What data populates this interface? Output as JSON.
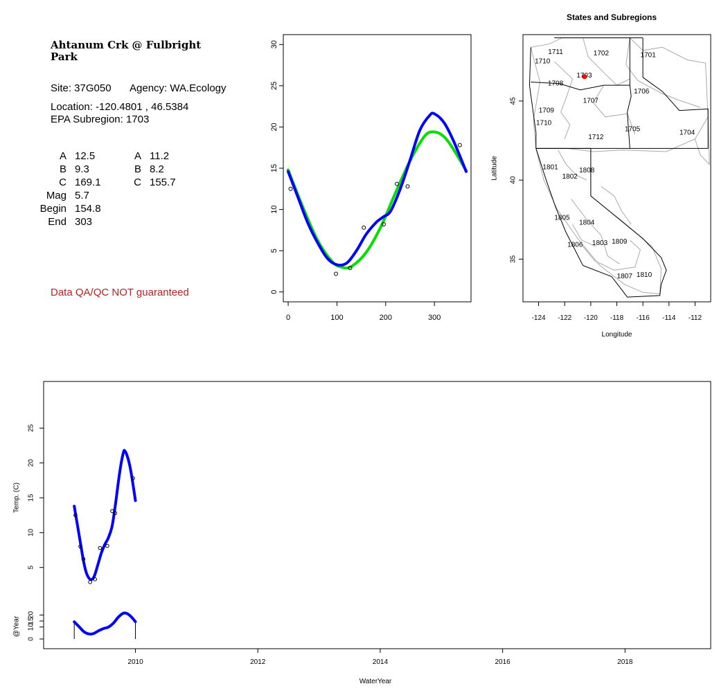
{
  "site_panel": {
    "station_name": "Ahtanum Crk @ Fulbright Park",
    "site_line": "Site: 37G050",
    "agency_line": "Agency: WA.Ecology",
    "location_line": "Location: -120.4801 , 46.5384",
    "subregion_line": "EPA Subregion: 1703",
    "params_left": [
      {
        "key": "A",
        "value": "12.5"
      },
      {
        "key": "B",
        "value": "9.3"
      },
      {
        "key": "C",
        "value": "169.1"
      },
      {
        "key": "Mag",
        "value": "5.7"
      },
      {
        "key": "Begin",
        "value": "154.8"
      },
      {
        "key": "End",
        "value": "303"
      }
    ],
    "params_right": [
      {
        "key": "A",
        "value": "11.2"
      },
      {
        "key": "B",
        "value": "8.2"
      },
      {
        "key": "C",
        "value": "155.7"
      }
    ],
    "warning": "Data QA/QC NOT guaranteed",
    "warning_color": "#b22222"
  },
  "chart_data": [
    {
      "type": "line",
      "xlim": [
        0,
        365
      ],
      "ylim": [
        0,
        30
      ],
      "xticks": [
        0,
        100,
        200,
        300
      ],
      "yticks": [
        0,
        5,
        10,
        15,
        20,
        25,
        30
      ],
      "points": [
        {
          "x": 5,
          "y": 12.5
        },
        {
          "x": 98,
          "y": 2.2
        },
        {
          "x": 127,
          "y": 2.9
        },
        {
          "x": 155,
          "y": 7.8
        },
        {
          "x": 196,
          "y": 8.2
        },
        {
          "x": 223,
          "y": 13.1
        },
        {
          "x": 245,
          "y": 12.8
        },
        {
          "x": 352,
          "y": 17.8
        }
      ],
      "series": [
        {
          "color": "#00e000",
          "values": [
            [
              0,
              14.8
            ],
            [
              30,
              10.3
            ],
            [
              60,
              6.3
            ],
            [
              90,
              3.7
            ],
            [
              110,
              3.0
            ],
            [
              130,
              3.1
            ],
            [
              160,
              4.8
            ],
            [
              190,
              7.9
            ],
            [
              220,
              12.0
            ],
            [
              250,
              15.9
            ],
            [
              280,
              18.9
            ],
            [
              300,
              19.4
            ],
            [
              320,
              18.8
            ],
            [
              340,
              17.2
            ],
            [
              365,
              14.7
            ]
          ]
        },
        {
          "color": "#0000ff",
          "values": [
            [
              0,
              14.6
            ],
            [
              20,
              11.5
            ],
            [
              40,
              8.4
            ],
            [
              60,
              6.0
            ],
            [
              80,
              4.1
            ],
            [
              100,
              3.3
            ],
            [
              120,
              3.5
            ],
            [
              140,
              5.0
            ],
            [
              160,
              7.0
            ],
            [
              180,
              8.4
            ],
            [
              195,
              9.1
            ],
            [
              210,
              9.8
            ],
            [
              230,
              12.5
            ],
            [
              250,
              16.0
            ],
            [
              270,
              19.6
            ],
            [
              290,
              21.4
            ],
            [
              300,
              21.6
            ],
            [
              320,
              20.5
            ],
            [
              340,
              18.2
            ],
            [
              365,
              14.6
            ]
          ]
        }
      ]
    },
    {
      "type": "line",
      "xlabel": "WaterYear",
      "ylabel": "Temp. (C)",
      "xlim": [
        2008.5,
        2019.4
      ],
      "ylim": [
        3,
        30
      ],
      "xticks": [
        "2010",
        "2012",
        "2014",
        "2016",
        "2018"
      ],
      "yticks": [
        5,
        10,
        15,
        20,
        25
      ],
      "points": [
        {
          "x": 2009.02,
          "y": 12.5
        },
        {
          "x": 2009.1,
          "y": 8.0
        },
        {
          "x": 2009.15,
          "y": 6.2
        },
        {
          "x": 2009.26,
          "y": 2.9
        },
        {
          "x": 2009.34,
          "y": 3.3
        },
        {
          "x": 2009.42,
          "y": 7.8
        },
        {
          "x": 2009.54,
          "y": 8.1
        },
        {
          "x": 2009.62,
          "y": 13.1
        },
        {
          "x": 2009.67,
          "y": 12.8
        },
        {
          "x": 2009.96,
          "y": 17.8
        }
      ],
      "series": [
        {
          "color": "#0000ff",
          "values": [
            [
              2009.0,
              13.8
            ],
            [
              2009.05,
              11.2
            ],
            [
              2009.1,
              8.6
            ],
            [
              2009.15,
              6.0
            ],
            [
              2009.2,
              4.2
            ],
            [
              2009.26,
              3.3
            ],
            [
              2009.32,
              3.6
            ],
            [
              2009.38,
              5.2
            ],
            [
              2009.44,
              7.0
            ],
            [
              2009.5,
              8.3
            ],
            [
              2009.56,
              9.3
            ],
            [
              2009.62,
              11.0
            ],
            [
              2009.68,
              14.5
            ],
            [
              2009.74,
              18.5
            ],
            [
              2009.8,
              21.4
            ],
            [
              2009.83,
              21.7
            ],
            [
              2009.88,
              20.6
            ],
            [
              2009.93,
              18.6
            ],
            [
              2010.0,
              14.6
            ]
          ]
        }
      ]
    },
    {
      "type": "area",
      "ylabel": "@Year",
      "ylim": [
        -2,
        30
      ],
      "yticks": [
        0,
        10,
        15,
        20
      ],
      "xlim": [
        2008.5,
        2019.4
      ],
      "bounds": [
        2009.0,
        2010.0
      ],
      "series": [
        {
          "color": "#0000ff",
          "values": [
            [
              2009.0,
              14.3
            ],
            [
              2009.08,
              10.2
            ],
            [
              2009.16,
              6.0
            ],
            [
              2009.24,
              4.2
            ],
            [
              2009.32,
              4.6
            ],
            [
              2009.4,
              6.9
            ],
            [
              2009.48,
              8.7
            ],
            [
              2009.56,
              10.0
            ],
            [
              2009.64,
              13.2
            ],
            [
              2009.72,
              18.2
            ],
            [
              2009.8,
              21.4
            ],
            [
              2009.86,
              21.3
            ],
            [
              2009.93,
              18.6
            ],
            [
              2010.0,
              14.4
            ]
          ]
        }
      ]
    }
  ],
  "map": {
    "title": "States and Subregions",
    "xlabel": "Longitude",
    "ylabel": "Latitude",
    "xlim": [
      -125.2,
      -110.8
    ],
    "ylim": [
      32.3,
      49.2
    ],
    "xticks": [
      -124,
      -122,
      -120,
      -118,
      -116,
      -114,
      -112
    ],
    "yticks": [
      35,
      40,
      45
    ],
    "site": {
      "lon": -120.48,
      "lat": 46.54,
      "color": "#ff0000"
    },
    "regions": [
      {
        "label": "1701",
        "lon": -115.6,
        "lat": 47.9
      },
      {
        "label": "1702",
        "lon": -119.2,
        "lat": 48.0
      },
      {
        "label": "1703",
        "lon": -120.5,
        "lat": 46.6
      },
      {
        "label": "1704",
        "lon": -112.6,
        "lat": 43.0
      },
      {
        "label": "1705",
        "lon": -116.8,
        "lat": 43.2
      },
      {
        "label": "1706",
        "lon": -116.1,
        "lat": 45.6
      },
      {
        "label": "1707",
        "lon": -120.0,
        "lat": 45.0
      },
      {
        "label": "1708",
        "lon": -122.7,
        "lat": 46.1
      },
      {
        "label": "1709",
        "lon": -123.4,
        "lat": 44.4
      },
      {
        "label": "1710",
        "lon": -123.7,
        "lat": 47.5
      },
      {
        "label": "1710",
        "lon": -123.6,
        "lat": 43.6
      },
      {
        "label": "1711",
        "lon": -122.7,
        "lat": 48.1
      },
      {
        "label": "1712",
        "lon": -119.6,
        "lat": 42.7
      },
      {
        "label": "1801",
        "lon": -123.1,
        "lat": 40.8
      },
      {
        "label": "1802",
        "lon": -121.6,
        "lat": 40.2
      },
      {
        "label": "1803",
        "lon": -119.3,
        "lat": 36.0
      },
      {
        "label": "1804",
        "lon": -120.3,
        "lat": 37.3
      },
      {
        "label": "1805",
        "lon": -122.2,
        "lat": 37.6
      },
      {
        "label": "1806",
        "lon": -121.2,
        "lat": 35.9
      },
      {
        "label": "1807",
        "lon": -117.4,
        "lat": 33.9
      },
      {
        "label": "1808",
        "lon": -120.3,
        "lat": 40.6
      },
      {
        "label": "1809",
        "lon": -117.8,
        "lat": 36.1
      },
      {
        "label": "1810",
        "lon": -115.9,
        "lat": 34.0
      }
    ]
  }
}
